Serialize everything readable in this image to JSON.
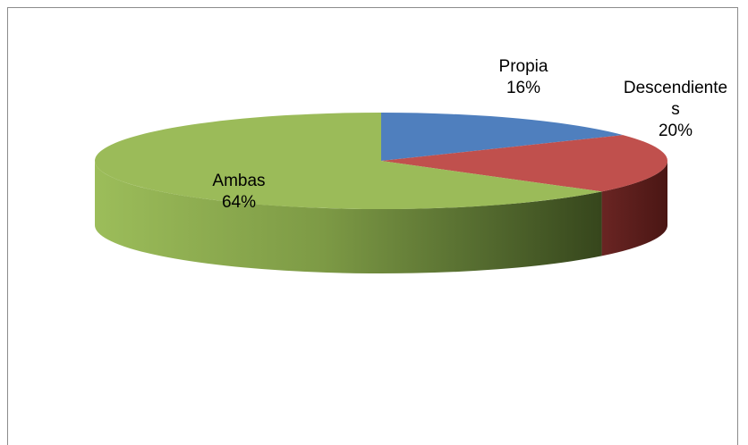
{
  "chart_data": {
    "type": "pie",
    "style": "3d",
    "categories": [
      "Propia",
      "Descendientes",
      "Ambas"
    ],
    "values": [
      16,
      20,
      64
    ],
    "percent_labels": [
      "16%",
      "20%",
      "64%"
    ],
    "label_lines": {
      "Propia": [
        "Propia",
        "16%"
      ],
      "Descendientes": [
        "Descendiente",
        "s",
        "20%"
      ],
      "Ambas": [
        "Ambas",
        "64%"
      ]
    },
    "colors": [
      "#4f7fbe",
      "#c0504d",
      "#9bbb59"
    ],
    "side_colors": [
      "#3a5f8f",
      "#5a1d1c",
      "#3c4f1f"
    ],
    "legend": "none",
    "title": ""
  }
}
